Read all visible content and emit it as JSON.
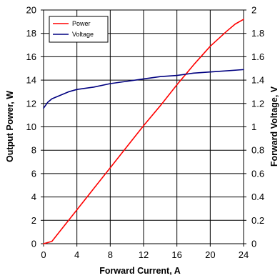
{
  "chart_data": {
    "type": "line",
    "title": "",
    "xlabel": "Forward Current, A",
    "ylabel": "Output Power, W",
    "y2label": "Forward Voltage, V",
    "xlim": [
      0,
      24
    ],
    "ylim": [
      0,
      20
    ],
    "y2lim": [
      0,
      2
    ],
    "xticks": [
      "0",
      "4",
      "8",
      "12",
      "16",
      "20",
      "24"
    ],
    "yticks": [
      "0",
      "2",
      "4",
      "6",
      "8",
      "10",
      "12",
      "14",
      "16",
      "18",
      "20"
    ],
    "y2ticks": [
      "0",
      "0.2",
      "0.4",
      "0.6",
      "0.8",
      "1",
      "1.2",
      "1.4",
      "1.6",
      "1.8",
      "2"
    ],
    "grid": true,
    "legend_position": "top-left",
    "series": [
      {
        "name": "Power",
        "axis": "left",
        "color": "#ff0000",
        "x": [
          0,
          1,
          2,
          4,
          6,
          8,
          10,
          12,
          14,
          16,
          18,
          20,
          22,
          23,
          24
        ],
        "y": [
          0,
          0.2,
          1.1,
          2.9,
          4.7,
          6.5,
          8.3,
          10.1,
          11.8,
          13.6,
          15.3,
          16.9,
          18.2,
          18.8,
          19.2
        ]
      },
      {
        "name": "Voltage",
        "axis": "right",
        "color": "#000080",
        "x": [
          0,
          0.5,
          1,
          2,
          3,
          4,
          6,
          8,
          10,
          12,
          14,
          16,
          18,
          20,
          22,
          24
        ],
        "y": [
          1.16,
          1.21,
          1.24,
          1.27,
          1.3,
          1.32,
          1.34,
          1.37,
          1.39,
          1.41,
          1.43,
          1.44,
          1.46,
          1.47,
          1.48,
          1.49
        ]
      }
    ]
  }
}
